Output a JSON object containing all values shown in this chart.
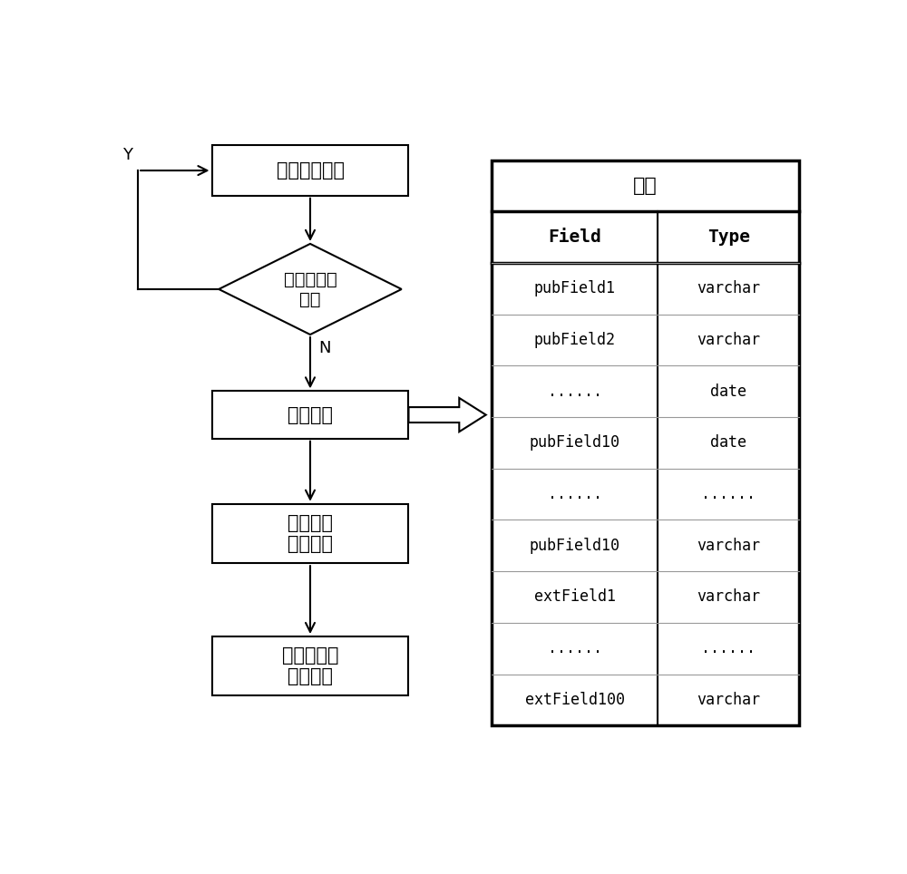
{
  "bg_color": "#ffffff",
  "box1_text": "用户输入表名",
  "diamond_text": "表名是否重\n复？",
  "box2_text": "创建新表",
  "box3_text": "表字典表\n追加记录",
  "box4_text": "字段字典表\n追加记录",
  "label_Y": "Y",
  "label_N": "N",
  "table_title": "新表",
  "table_header": [
    "Field",
    "Type"
  ],
  "table_rows": [
    [
      "pubField1",
      "varchar"
    ],
    [
      "pubField2",
      "varchar"
    ],
    [
      "......",
      "date"
    ],
    [
      "pubField10",
      "date"
    ],
    [
      "......",
      "......"
    ],
    [
      "pubField10",
      "varchar"
    ],
    [
      "extField1",
      "varchar"
    ],
    [
      "......",
      "......"
    ],
    [
      "extField100",
      "varchar"
    ]
  ]
}
